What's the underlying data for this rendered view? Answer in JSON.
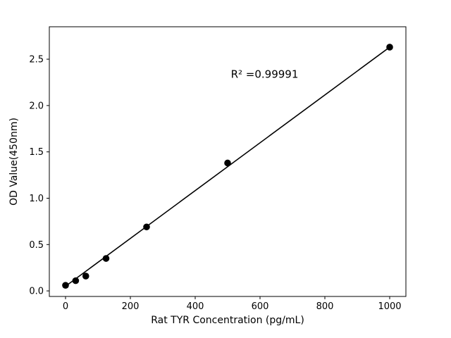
{
  "chart_data": {
    "type": "scatter",
    "title": "",
    "xlabel": "Rat TYR Concentration (pg/mL)",
    "ylabel": "OD Value(450nm)",
    "x": [
      0,
      31.25,
      62.5,
      125,
      250,
      500,
      1000
    ],
    "y": [
      0.06,
      0.11,
      0.16,
      0.35,
      0.69,
      1.38,
      2.63
    ],
    "fit_line": {
      "x0": 0,
      "y0": 0.05,
      "x1": 1000,
      "y1": 2.63
    },
    "annotation": {
      "text": "R² =0.99991",
      "x": 510,
      "y": 2.3
    },
    "xticks": [
      0,
      200,
      400,
      600,
      800,
      1000
    ],
    "yticks": [
      0.0,
      0.5,
      1.0,
      1.5,
      2.0,
      2.5
    ],
    "xlim": [
      -50,
      1050
    ],
    "ylim": [
      -0.06,
      2.85
    ],
    "grid": false,
    "legend": "none",
    "marker_color": "#000000",
    "line_color": "#000000",
    "background": "#ffffff"
  }
}
